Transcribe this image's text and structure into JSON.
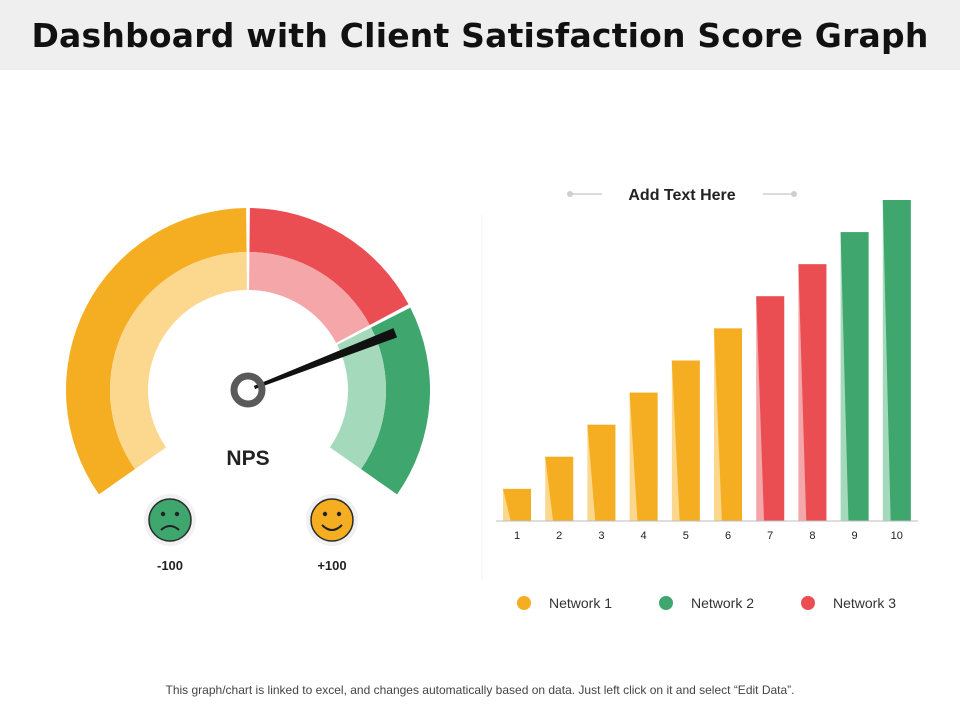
{
  "page": {
    "title": "Dashboard with Client Satisfaction Score Graph",
    "footer": "This graph/chart is linked to excel, and changes automatically based on data. Just left click on it and select “Edit Data”."
  },
  "colors": {
    "orange": "#F5AE22",
    "orange_light": "#FCD78E",
    "red": "#EA4E52",
    "red_light": "#F4A6A8",
    "green": "#3FA66E",
    "green_light": "#A5D9BC",
    "needle": "#111111",
    "hub": "#5a5a5a"
  },
  "chart_data": [
    {
      "type": "gauge",
      "label": "NPS",
      "min_label": "-100",
      "max_label": "+100",
      "min_icon": "sad-face-icon",
      "max_icon": "happy-face-icon",
      "bands": [
        {
          "name": "orange",
          "from": -100,
          "to": 0
        },
        {
          "name": "red",
          "from": 0,
          "to": 50
        },
        {
          "name": "green",
          "from": 50,
          "to": 100
        }
      ],
      "value": 55
    },
    {
      "type": "bar",
      "title": "Add Text Here",
      "categories": [
        "1",
        "2",
        "3",
        "4",
        "5",
        "6",
        "7",
        "8",
        "9",
        "10"
      ],
      "values": [
        1,
        2,
        3,
        4,
        5,
        6,
        7,
        8,
        9,
        10
      ],
      "series_of_bar": [
        "Network 1",
        "Network 1",
        "Network 1",
        "Network 1",
        "Network 1",
        "Network 1",
        "Network 3",
        "Network 3",
        "Network 2",
        "Network 2"
      ],
      "ylim": [
        0,
        10
      ],
      "legend": [
        {
          "name": "Network 1",
          "color": "#F5AE22"
        },
        {
          "name": "Network 2",
          "color": "#3FA66E"
        },
        {
          "name": "Network 3",
          "color": "#EA4E52"
        }
      ],
      "legend_position": "bottom"
    }
  ]
}
